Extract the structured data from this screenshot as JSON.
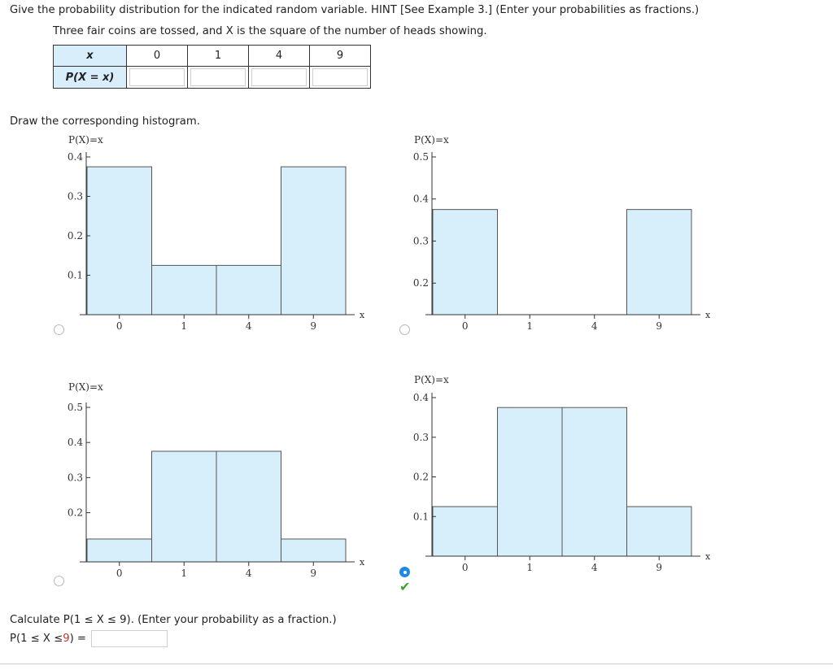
{
  "instruction": "Give the probability distribution for the indicated random variable. HINT [See Example 3.] (Enter your probabilities as fractions.)",
  "problem": "Three fair coins are tossed, and X is the square of the number of heads showing.",
  "table": {
    "row1_header": "x",
    "row2_header": "P(X = x)",
    "x_values": [
      "0",
      "1",
      "4",
      "9"
    ]
  },
  "draw_label": "Draw the corresponding histogram.",
  "calc": {
    "question": "Calculate P(1 ≤ X ≤ 9). (Enter your probability as a fraction.)",
    "prefix": "P(1 ≤ X ≤ ",
    "upper": "9",
    "suffix": ") ="
  },
  "colors": {
    "bar_fill": "#d6effb",
    "bar_stroke": "#555555",
    "radio_selected": "#1e88e5",
    "check": "#3aa335",
    "highlight": "#c0392b"
  },
  "chart_data": [
    {
      "type": "bar",
      "selected": false,
      "ylabel": "P(X)=x",
      "xlabel": "x",
      "categories": [
        "0",
        "1",
        "4",
        "9"
      ],
      "values": [
        0.375,
        0.125,
        0.125,
        0.375
      ],
      "yticks": [
        "0.1",
        "0.2",
        "0.3",
        "0.4"
      ],
      "ytick_values": [
        0.1,
        0.2,
        0.3,
        0.4
      ],
      "ylim": [
        0,
        0.4
      ]
    },
    {
      "type": "bar",
      "selected": false,
      "ylabel": "P(X)=x",
      "xlabel": "x",
      "categories": [
        "0",
        "1",
        "4",
        "9"
      ],
      "values": [
        0.375,
        0.125,
        0.125,
        0.375
      ],
      "yticks": [
        "0.2",
        "0.3",
        "0.4",
        "0.5"
      ],
      "ytick_values": [
        0.2,
        0.3,
        0.4,
        0.5
      ],
      "ylim": [
        0.125,
        0.5
      ]
    },
    {
      "type": "bar",
      "selected": false,
      "ylabel": "P(X)=x",
      "xlabel": "x",
      "categories": [
        "0",
        "1",
        "4",
        "9"
      ],
      "values": [
        0.125,
        0.375,
        0.375,
        0.125
      ],
      "yticks": [
        "0.2",
        "0.3",
        "0.4",
        "0.5"
      ],
      "ytick_values": [
        0.2,
        0.3,
        0.4,
        0.5
      ],
      "ylim": [
        0.06,
        0.5
      ]
    },
    {
      "type": "bar",
      "selected": true,
      "correct": true,
      "ylabel": "P(X)=x",
      "xlabel": "x",
      "categories": [
        "0",
        "1",
        "4",
        "9"
      ],
      "values": [
        0.125,
        0.375,
        0.375,
        0.125
      ],
      "yticks": [
        "0.1",
        "0.2",
        "0.3",
        "0.4"
      ],
      "ytick_values": [
        0.1,
        0.2,
        0.3,
        0.4
      ],
      "ylim": [
        0,
        0.4
      ]
    }
  ]
}
